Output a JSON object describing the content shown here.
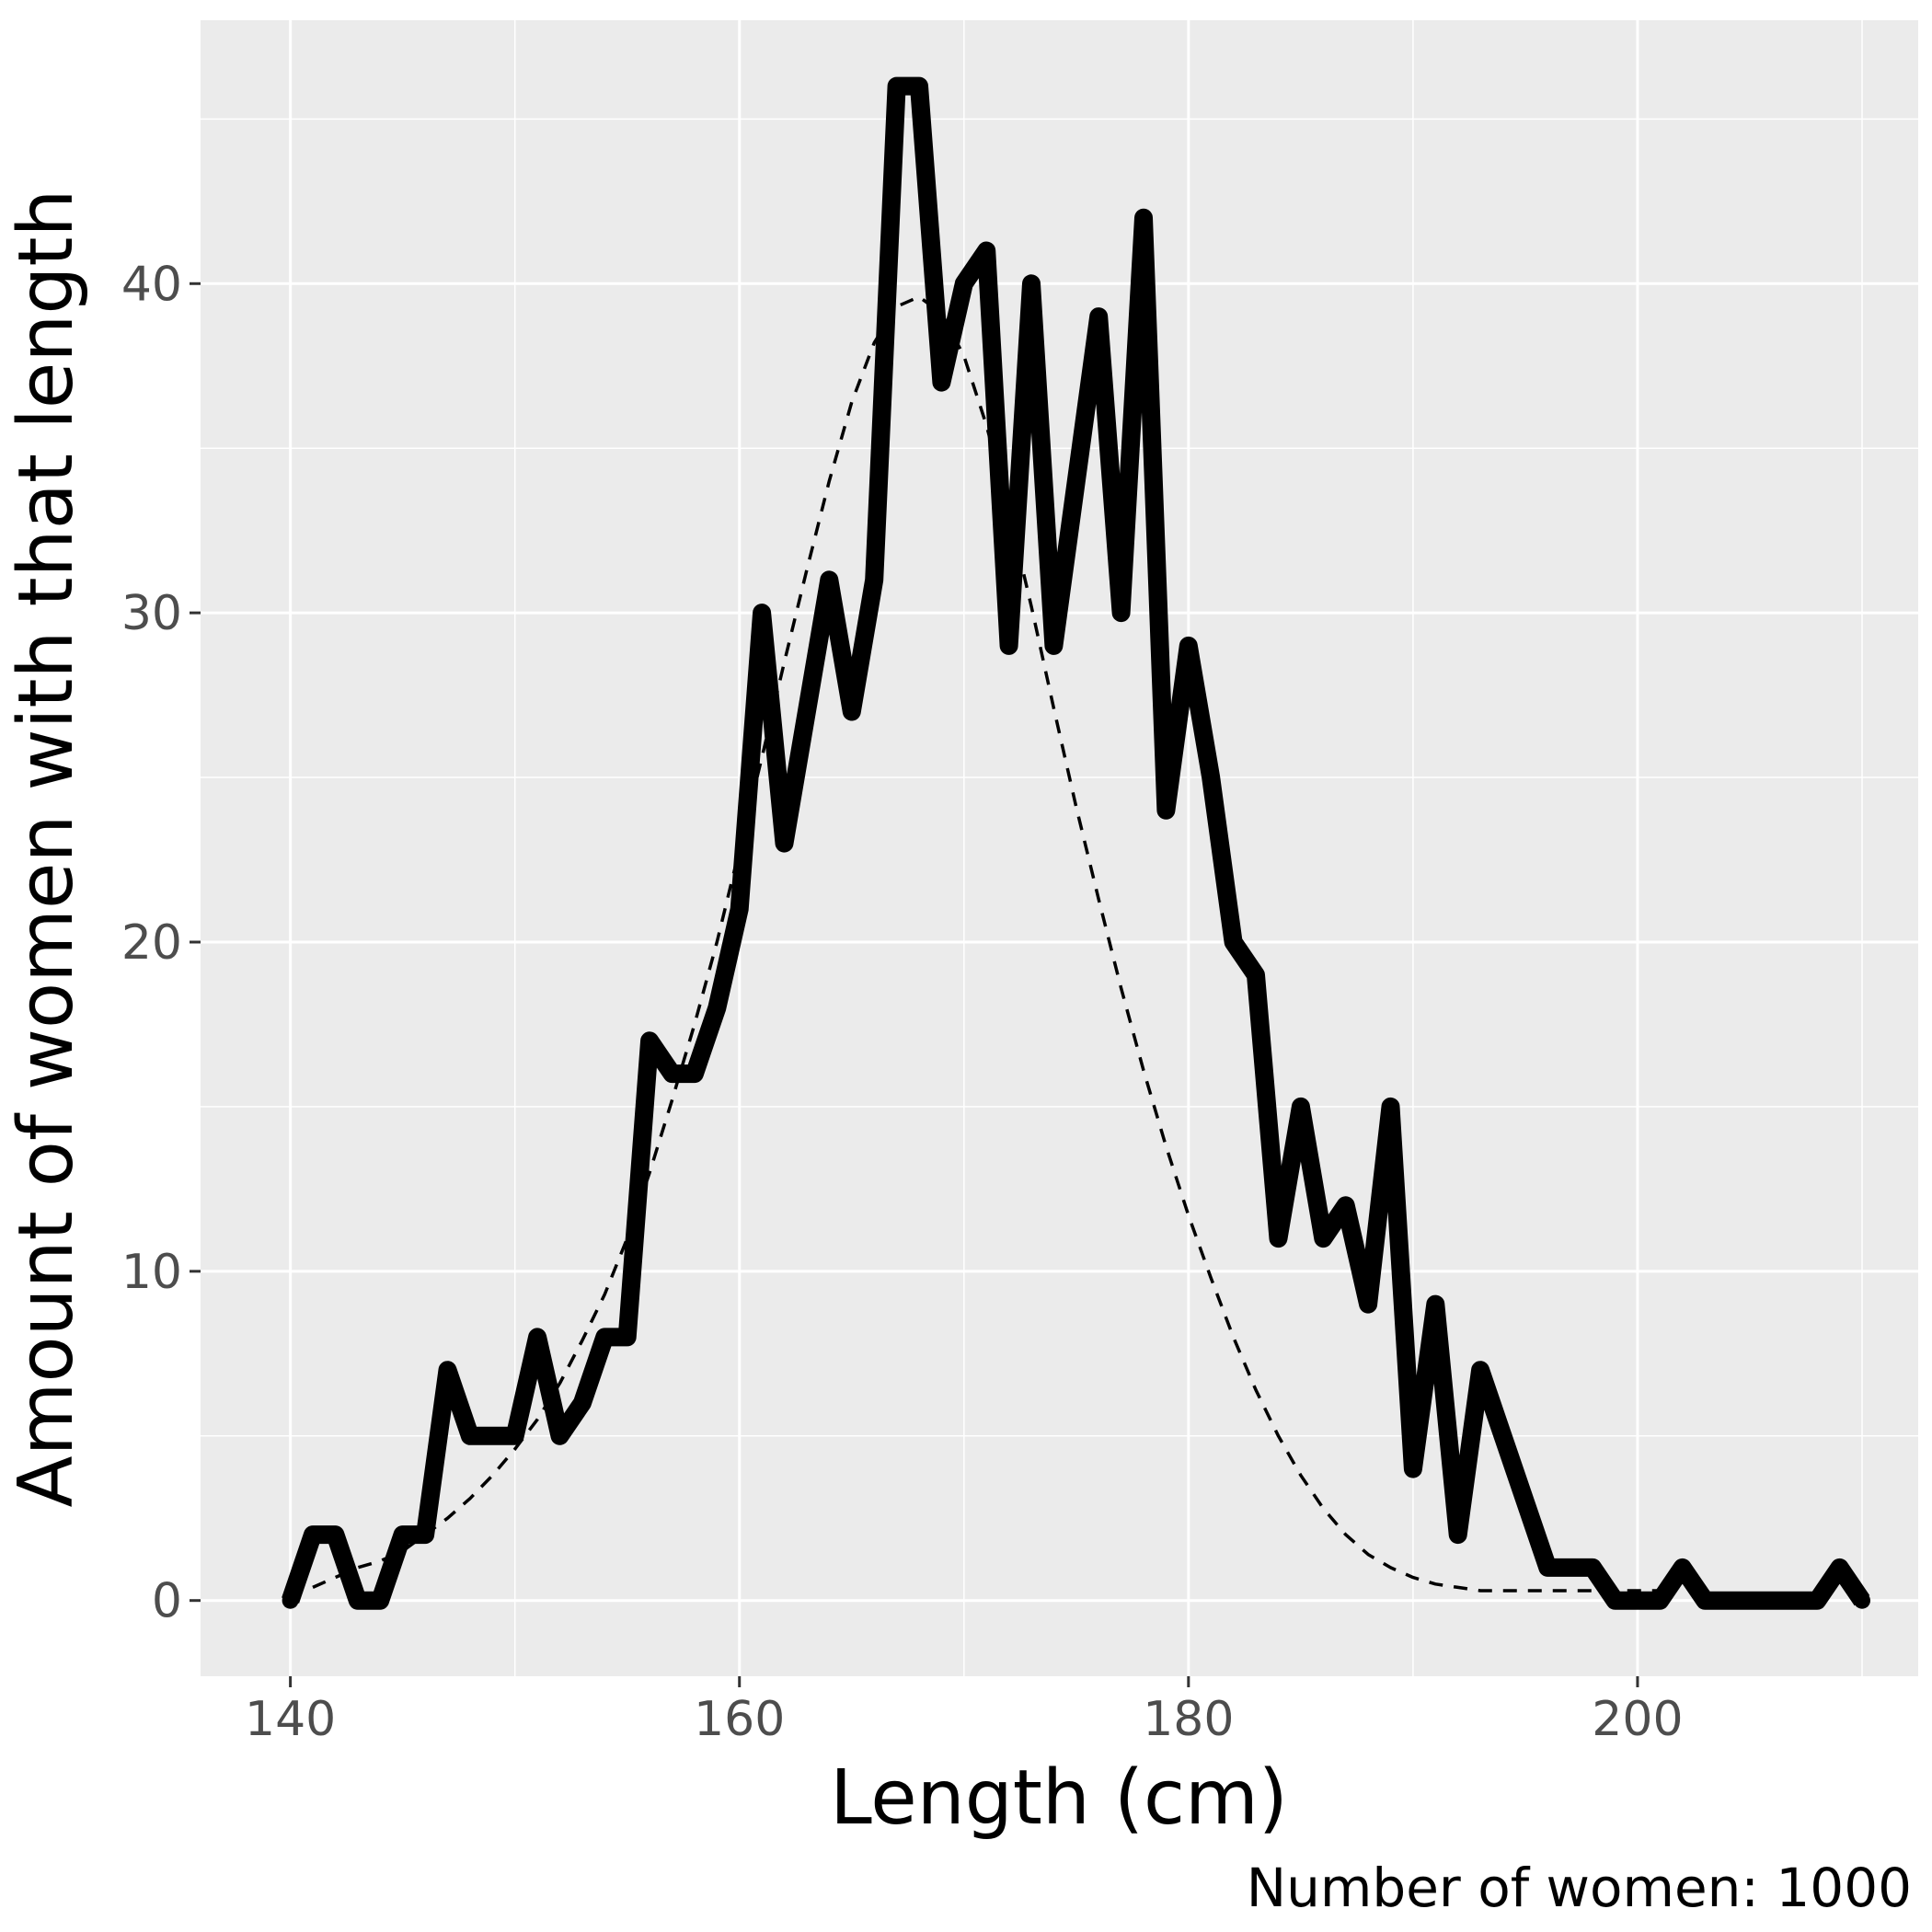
{
  "chart_data": {
    "type": "line",
    "xlabel": "Length (cm)",
    "ylabel": "Amount of women with that length",
    "caption": "Number of women: 1000",
    "xlim": [
      136,
      212.5
    ],
    "ylim": [
      -2.3,
      48
    ],
    "x_ticks": [
      140,
      160,
      180,
      200
    ],
    "y_ticks": [
      0,
      10,
      20,
      30,
      40
    ],
    "grid": true,
    "legend": "none",
    "colors": {
      "panel_background": "#ebebeb",
      "grid": "#ffffff",
      "line": "#000000",
      "tick_label": "#4d4d4d"
    },
    "series": [
      {
        "style": "solid-thick",
        "x": [
          140,
          141,
          142,
          143,
          144,
          145,
          146,
          147,
          148,
          149,
          150,
          151,
          152,
          153,
          154,
          155,
          156,
          157,
          158,
          159,
          160,
          161,
          162,
          163,
          164,
          165,
          166,
          167,
          168,
          169,
          170,
          171,
          172,
          173,
          174,
          175,
          176,
          177,
          178,
          179,
          180,
          181,
          182,
          183,
          184,
          185,
          186,
          187,
          188,
          189,
          190,
          191,
          192,
          193,
          194,
          195,
          196,
          197,
          198,
          199,
          200,
          201,
          202,
          203,
          204,
          205,
          206,
          207,
          208,
          209,
          210
        ],
        "y": [
          0,
          2,
          2,
          0,
          0,
          2,
          2,
          7,
          5,
          5,
          5,
          8,
          5,
          6,
          8,
          8,
          17,
          16,
          16,
          18,
          21,
          30,
          23,
          27,
          31,
          27,
          31,
          46,
          46,
          37,
          40,
          41,
          29,
          40,
          29,
          34,
          39,
          30,
          42,
          24,
          29,
          25,
          20,
          19,
          11,
          15,
          11,
          12,
          9,
          15,
          4,
          9,
          2,
          7,
          5,
          3,
          1,
          1,
          1,
          0,
          0,
          0,
          1,
          0,
          0,
          0,
          0,
          0,
          0,
          1,
          0
        ]
      },
      {
        "style": "dashed-thin",
        "x": [
          141,
          142,
          143,
          144,
          145,
          146,
          147,
          148,
          149,
          150,
          151,
          152,
          153,
          154,
          155,
          156,
          157,
          158,
          159,
          160,
          161,
          162,
          163,
          164,
          165,
          166,
          167,
          168,
          169,
          170,
          171,
          172,
          173,
          174,
          175,
          176,
          177,
          178,
          179,
          180,
          181,
          182,
          183,
          184,
          185,
          186,
          187,
          188,
          189,
          190,
          191,
          192,
          193,
          194,
          195,
          196,
          197,
          198,
          199,
          200,
          201
        ],
        "y": [
          0.4,
          0.7,
          1,
          1.2,
          1.5,
          2,
          2.5,
          3.1,
          3.8,
          4.6,
          5.5,
          6.6,
          7.9,
          9.3,
          11,
          13,
          15.2,
          17.5,
          20,
          22.8,
          25.6,
          28.5,
          31.3,
          34,
          36.4,
          38.2,
          39.3,
          39.6,
          39.1,
          37.8,
          35.7,
          33.1,
          30.2,
          27.1,
          24.1,
          21.3,
          18.6,
          16.1,
          13.8,
          11.7,
          9.8,
          8,
          6.4,
          5,
          3.8,
          2.8,
          2,
          1.4,
          1,
          0.7,
          0.5,
          0.4,
          0.3,
          0.3,
          0.3,
          0.3,
          0.3,
          0.3,
          0.3,
          0.3,
          0.3
        ]
      }
    ]
  }
}
